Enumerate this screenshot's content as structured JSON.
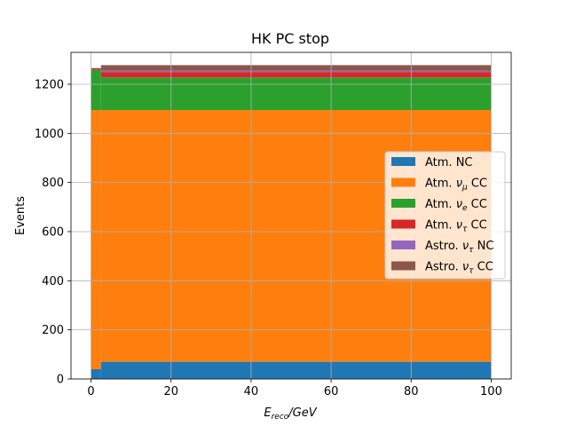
{
  "chart_data": {
    "type": "bar",
    "title": "HK PC stop",
    "xlabel": "E_reco/GeV",
    "ylabel": "Events",
    "xlim": [
      -5,
      105
    ],
    "ylim": [
      0,
      1330
    ],
    "x_ticks": [
      0,
      20,
      40,
      60,
      80,
      100
    ],
    "y_ticks": [
      0,
      200,
      400,
      600,
      800,
      1000,
      1200
    ],
    "grid": true,
    "legend_position": "center-right",
    "stacked": true,
    "bins": [
      [
        0,
        2.5
      ],
      [
        2.5,
        100
      ]
    ],
    "series": [
      {
        "name": "Atm. NC",
        "label_main": "Atm. NC",
        "label_sub": "",
        "label_tail": "",
        "color": "#1f77b4",
        "values": [
          40,
          70
        ]
      },
      {
        "name": "Atm. ν_μ CC",
        "label_main": "Atm. ",
        "label_sub": "μ",
        "label_tail": " CC",
        "color": "#ff7f0e",
        "values": [
          1055,
          1025
        ]
      },
      {
        "name": "Atm. ν_e CC",
        "label_main": "Atm. ",
        "label_sub": "e",
        "label_tail": " CC",
        "color": "#2ca02c",
        "values": [
          165,
          133
        ]
      },
      {
        "name": "Atm. ν_τ CC",
        "label_main": "Atm. ",
        "label_sub": "τ",
        "label_tail": " CC",
        "color": "#d62728",
        "values": [
          5,
          22
        ]
      },
      {
        "name": "Astro. ν_τ NC",
        "label_main": "Astro. ",
        "label_sub": "τ",
        "label_tail": " NC",
        "color": "#9467bd",
        "values": [
          1,
          5
        ]
      },
      {
        "name": "Astro. ν_τ CC",
        "label_main": "Astro. ",
        "label_sub": "τ",
        "label_tail": " CC",
        "color": "#8c564b",
        "values": [
          0,
          23
        ]
      }
    ]
  }
}
